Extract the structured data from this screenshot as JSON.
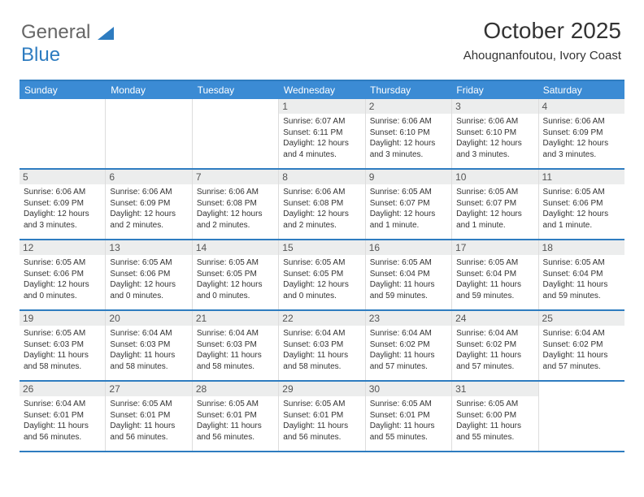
{
  "logo": {
    "text1": "General",
    "text2": "Blue"
  },
  "title": "October 2025",
  "location": "Ahougnanfoutou, Ivory Coast",
  "style": {
    "accent": "#3b8bd4",
    "border": "#2e7cc0",
    "daybg": "#eceded",
    "text": "#333333",
    "font_size_title": 28,
    "font_size_location": 15,
    "font_size_header": 12,
    "font_size_daynum": 12,
    "font_size_info": 10
  },
  "day_headers": [
    "Sunday",
    "Monday",
    "Tuesday",
    "Wednesday",
    "Thursday",
    "Friday",
    "Saturday"
  ],
  "weeks": [
    [
      {
        "n": "",
        "sr": "",
        "ss": "",
        "dl": "",
        "empty": true
      },
      {
        "n": "",
        "sr": "",
        "ss": "",
        "dl": "",
        "empty": true
      },
      {
        "n": "",
        "sr": "",
        "ss": "",
        "dl": "",
        "empty": true
      },
      {
        "n": "1",
        "sr": "Sunrise: 6:07 AM",
        "ss": "Sunset: 6:11 PM",
        "dl": "Daylight: 12 hours and 4 minutes."
      },
      {
        "n": "2",
        "sr": "Sunrise: 6:06 AM",
        "ss": "Sunset: 6:10 PM",
        "dl": "Daylight: 12 hours and 3 minutes."
      },
      {
        "n": "3",
        "sr": "Sunrise: 6:06 AM",
        "ss": "Sunset: 6:10 PM",
        "dl": "Daylight: 12 hours and 3 minutes."
      },
      {
        "n": "4",
        "sr": "Sunrise: 6:06 AM",
        "ss": "Sunset: 6:09 PM",
        "dl": "Daylight: 12 hours and 3 minutes."
      }
    ],
    [
      {
        "n": "5",
        "sr": "Sunrise: 6:06 AM",
        "ss": "Sunset: 6:09 PM",
        "dl": "Daylight: 12 hours and 3 minutes."
      },
      {
        "n": "6",
        "sr": "Sunrise: 6:06 AM",
        "ss": "Sunset: 6:09 PM",
        "dl": "Daylight: 12 hours and 2 minutes."
      },
      {
        "n": "7",
        "sr": "Sunrise: 6:06 AM",
        "ss": "Sunset: 6:08 PM",
        "dl": "Daylight: 12 hours and 2 minutes."
      },
      {
        "n": "8",
        "sr": "Sunrise: 6:06 AM",
        "ss": "Sunset: 6:08 PM",
        "dl": "Daylight: 12 hours and 2 minutes."
      },
      {
        "n": "9",
        "sr": "Sunrise: 6:05 AM",
        "ss": "Sunset: 6:07 PM",
        "dl": "Daylight: 12 hours and 1 minute."
      },
      {
        "n": "10",
        "sr": "Sunrise: 6:05 AM",
        "ss": "Sunset: 6:07 PM",
        "dl": "Daylight: 12 hours and 1 minute."
      },
      {
        "n": "11",
        "sr": "Sunrise: 6:05 AM",
        "ss": "Sunset: 6:06 PM",
        "dl": "Daylight: 12 hours and 1 minute."
      }
    ],
    [
      {
        "n": "12",
        "sr": "Sunrise: 6:05 AM",
        "ss": "Sunset: 6:06 PM",
        "dl": "Daylight: 12 hours and 0 minutes."
      },
      {
        "n": "13",
        "sr": "Sunrise: 6:05 AM",
        "ss": "Sunset: 6:06 PM",
        "dl": "Daylight: 12 hours and 0 minutes."
      },
      {
        "n": "14",
        "sr": "Sunrise: 6:05 AM",
        "ss": "Sunset: 6:05 PM",
        "dl": "Daylight: 12 hours and 0 minutes."
      },
      {
        "n": "15",
        "sr": "Sunrise: 6:05 AM",
        "ss": "Sunset: 6:05 PM",
        "dl": "Daylight: 12 hours and 0 minutes."
      },
      {
        "n": "16",
        "sr": "Sunrise: 6:05 AM",
        "ss": "Sunset: 6:04 PM",
        "dl": "Daylight: 11 hours and 59 minutes."
      },
      {
        "n": "17",
        "sr": "Sunrise: 6:05 AM",
        "ss": "Sunset: 6:04 PM",
        "dl": "Daylight: 11 hours and 59 minutes."
      },
      {
        "n": "18",
        "sr": "Sunrise: 6:05 AM",
        "ss": "Sunset: 6:04 PM",
        "dl": "Daylight: 11 hours and 59 minutes."
      }
    ],
    [
      {
        "n": "19",
        "sr": "Sunrise: 6:05 AM",
        "ss": "Sunset: 6:03 PM",
        "dl": "Daylight: 11 hours and 58 minutes."
      },
      {
        "n": "20",
        "sr": "Sunrise: 6:04 AM",
        "ss": "Sunset: 6:03 PM",
        "dl": "Daylight: 11 hours and 58 minutes."
      },
      {
        "n": "21",
        "sr": "Sunrise: 6:04 AM",
        "ss": "Sunset: 6:03 PM",
        "dl": "Daylight: 11 hours and 58 minutes."
      },
      {
        "n": "22",
        "sr": "Sunrise: 6:04 AM",
        "ss": "Sunset: 6:03 PM",
        "dl": "Daylight: 11 hours and 58 minutes."
      },
      {
        "n": "23",
        "sr": "Sunrise: 6:04 AM",
        "ss": "Sunset: 6:02 PM",
        "dl": "Daylight: 11 hours and 57 minutes."
      },
      {
        "n": "24",
        "sr": "Sunrise: 6:04 AM",
        "ss": "Sunset: 6:02 PM",
        "dl": "Daylight: 11 hours and 57 minutes."
      },
      {
        "n": "25",
        "sr": "Sunrise: 6:04 AM",
        "ss": "Sunset: 6:02 PM",
        "dl": "Daylight: 11 hours and 57 minutes."
      }
    ],
    [
      {
        "n": "26",
        "sr": "Sunrise: 6:04 AM",
        "ss": "Sunset: 6:01 PM",
        "dl": "Daylight: 11 hours and 56 minutes."
      },
      {
        "n": "27",
        "sr": "Sunrise: 6:05 AM",
        "ss": "Sunset: 6:01 PM",
        "dl": "Daylight: 11 hours and 56 minutes."
      },
      {
        "n": "28",
        "sr": "Sunrise: 6:05 AM",
        "ss": "Sunset: 6:01 PM",
        "dl": "Daylight: 11 hours and 56 minutes."
      },
      {
        "n": "29",
        "sr": "Sunrise: 6:05 AM",
        "ss": "Sunset: 6:01 PM",
        "dl": "Daylight: 11 hours and 56 minutes."
      },
      {
        "n": "30",
        "sr": "Sunrise: 6:05 AM",
        "ss": "Sunset: 6:01 PM",
        "dl": "Daylight: 11 hours and 55 minutes."
      },
      {
        "n": "31",
        "sr": "Sunrise: 6:05 AM",
        "ss": "Sunset: 6:00 PM",
        "dl": "Daylight: 11 hours and 55 minutes."
      },
      {
        "n": "",
        "sr": "",
        "ss": "",
        "dl": "",
        "empty": true
      }
    ]
  ]
}
